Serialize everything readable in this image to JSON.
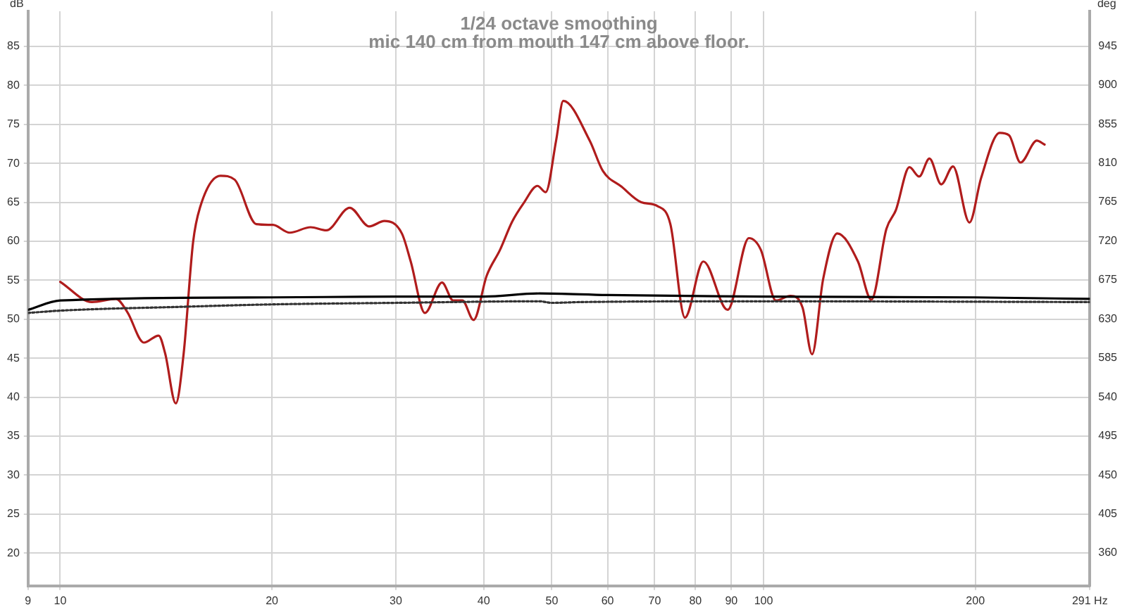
{
  "chart_data": {
    "type": "line",
    "title": "1/24 octave smoothing",
    "subtitle": "mic 140 cm from mouth 147 cm above floor.",
    "ylabel": "dB",
    "y2label": "deg",
    "log": "x",
    "grid": true,
    "legend": false,
    "marker": "none",
    "xlim": [
      9,
      291
    ],
    "xticks": [
      9,
      10,
      20,
      30,
      40,
      50,
      60,
      70,
      80,
      90,
      100,
      200,
      {
        "value": 291,
        "label": "291 Hz"
      }
    ],
    "ylim": [
      15.8,
      89.5
    ],
    "yticks": [
      20,
      25,
      30,
      35,
      40,
      45,
      50,
      55,
      60,
      65,
      70,
      75,
      80,
      85
    ],
    "y2lim": [
      322,
      985
    ],
    "y2ticks": [
      360,
      405,
      450,
      495,
      540,
      585,
      630,
      675,
      720,
      765,
      810,
      855,
      900,
      945
    ],
    "series": [
      {
        "color": "#000000",
        "line_style": "solid",
        "x": [
          9,
          10,
          20,
          30,
          40,
          48,
          60,
          100,
          200,
          291
        ],
        "values": [
          51.2,
          52.4,
          52.8,
          52.9,
          52.9,
          53.3,
          53.1,
          52.9,
          52.8,
          52.6
        ]
      },
      {
        "color": "#333333",
        "line_style": "dotted",
        "x": [
          9,
          10,
          15,
          20,
          30,
          48,
          50,
          55,
          100,
          291
        ],
        "values": [
          50.8,
          51.1,
          51.6,
          51.9,
          52.1,
          52.3,
          52.1,
          52.2,
          52.3,
          52.2
        ]
      },
      {
        "color": "#b01c1c",
        "line_style": "solid",
        "x": [
          10,
          11.1,
          12,
          12.46,
          13.15,
          13.8,
          14.1,
          14.6,
          14.98,
          15.45,
          15.8,
          16.9,
          17.7,
          19,
          20.06,
          21.2,
          22.7,
          23.9,
          25.8,
          27.5,
          28.9,
          30.6,
          31.5,
          33,
          34.9,
          36.2,
          37.3,
          38.7,
          40.4,
          42.2,
          43.9,
          45.6,
          47.7,
          49,
          50.7,
          51.9,
          56.6,
          59.1,
          62.8,
          67,
          70.7,
          73.7,
          77.3,
          82.1,
          88.9,
          95.3,
          99.1,
          104.1,
          109.2,
          113.6,
          117.2,
          121.5,
          127.3,
          136.2,
          142.3,
          149.5,
          154.2,
          161.2,
          166.4,
          172.1,
          178.9,
          185.9,
          196.2,
          203.8,
          216.6,
          223.3,
          231.9,
          244.6,
          250.9
        ],
        "values": [
          54.8,
          52.2,
          52.6,
          50.9,
          47,
          47.9,
          45.6,
          39.2,
          45.6,
          59.9,
          64.3,
          68.4,
          67.9,
          62.2,
          62.1,
          61.1,
          61.8,
          61.4,
          64.3,
          61.9,
          62.6,
          61,
          57.4,
          50.8,
          54.7,
          52.4,
          52.4,
          49.9,
          55.6,
          58.9,
          62.5,
          64.9,
          67.1,
          66.3,
          72.9,
          78,
          72.9,
          69,
          67,
          65,
          64.5,
          62.2,
          50.2,
          57.4,
          51.2,
          60.4,
          58.9,
          52.4,
          53,
          51.5,
          45.5,
          55.1,
          61,
          57.4,
          52.5,
          61.6,
          64,
          69.5,
          68.3,
          70.6,
          67.3,
          69.6,
          62.4,
          68.1,
          73.9,
          73.6,
          70.1,
          72.9,
          72.4
        ]
      }
    ]
  }
}
